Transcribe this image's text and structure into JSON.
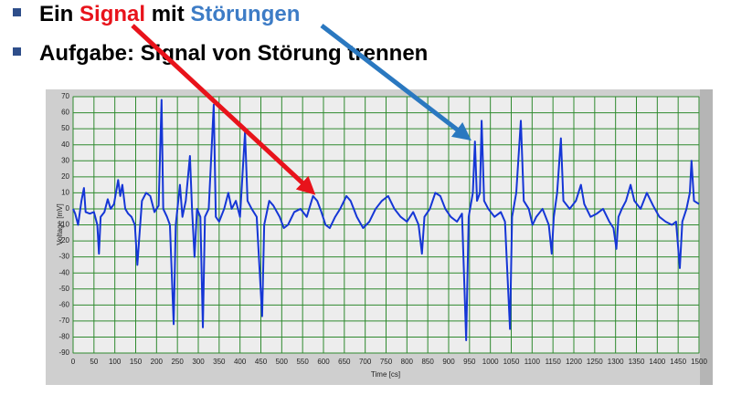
{
  "slide": {
    "bullet1": [
      "Ein ",
      "Signal",
      " mit ",
      "Störungen"
    ],
    "bullet2": "Aufgabe: Signal von Störung trennen"
  },
  "chart_data": {
    "type": "line",
    "xlabel": "Time [cs]",
    "ylabel": "Voltage [mV]",
    "color": "#1536d6",
    "grid": true,
    "xlim": [
      0,
      1500
    ],
    "ylim": [
      -90,
      70
    ],
    "xticks": [
      0,
      50,
      100,
      150,
      200,
      250,
      300,
      350,
      400,
      450,
      500,
      550,
      600,
      650,
      700,
      750,
      800,
      850,
      900,
      950,
      1000,
      1050,
      1100,
      1150,
      1200,
      1250,
      1300,
      1350,
      1400,
      1450,
      1500
    ],
    "yticks": [
      -90,
      -80,
      -70,
      -60,
      -50,
      -40,
      -30,
      -20,
      -10,
      0,
      10,
      20,
      30,
      40,
      50,
      60,
      70
    ],
    "x": [
      0,
      5,
      12,
      20,
      26,
      30,
      40,
      50,
      58,
      62,
      66,
      75,
      83,
      90,
      98,
      108,
      113,
      118,
      125,
      132,
      140,
      148,
      154,
      158,
      165,
      175,
      185,
      195,
      205,
      212,
      216,
      225,
      232,
      241,
      246,
      256,
      262,
      270,
      280,
      285,
      291,
      297,
      305,
      311,
      316,
      325,
      337,
      342,
      350,
      362,
      372,
      380,
      390,
      400,
      412,
      418,
      428,
      440,
      453,
      458,
      470,
      480,
      495,
      505,
      515,
      530,
      545,
      560,
      575,
      585,
      595,
      605,
      615,
      628,
      640,
      655,
      665,
      680,
      695,
      710,
      725,
      740,
      755,
      770,
      785,
      800,
      815,
      828,
      836,
      842,
      855,
      868,
      880,
      892,
      905,
      920,
      932,
      942,
      948,
      958,
      963,
      968,
      975,
      979,
      985,
      995,
      1010,
      1025,
      1035,
      1047,
      1052,
      1062,
      1073,
      1080,
      1092,
      1101,
      1110,
      1125,
      1140,
      1147,
      1152,
      1160,
      1169,
      1175,
      1190,
      1205,
      1217,
      1225,
      1240,
      1255,
      1270,
      1285,
      1295,
      1302,
      1307,
      1315,
      1325,
      1336,
      1345,
      1360,
      1375,
      1390,
      1405,
      1420,
      1435,
      1445,
      1454,
      1460,
      1470,
      1478,
      1482,
      1488,
      1500
    ],
    "values": [
      0,
      -3,
      -10,
      5,
      13,
      -2,
      -3,
      -2,
      -10,
      -28,
      -5,
      -2,
      6,
      0,
      3,
      18,
      8,
      15,
      0,
      -3,
      -5,
      -10,
      -35,
      -20,
      5,
      10,
      8,
      -2,
      2,
      68,
      0,
      -5,
      -10,
      -72,
      -10,
      15,
      -5,
      5,
      33,
      0,
      -30,
      0,
      -5,
      -74,
      -5,
      0,
      65,
      -5,
      -8,
      0,
      10,
      0,
      5,
      -5,
      48,
      5,
      0,
      -5,
      -67,
      -10,
      5,
      2,
      -5,
      -12,
      -10,
      -2,
      0,
      -5,
      8,
      5,
      -2,
      -10,
      -12,
      -5,
      0,
      8,
      5,
      -5,
      -12,
      -8,
      0,
      5,
      8,
      0,
      -5,
      -8,
      -2,
      -10,
      -28,
      -5,
      0,
      10,
      8,
      0,
      -5,
      -8,
      -3,
      -82,
      -5,
      10,
      42,
      5,
      10,
      55,
      5,
      0,
      -5,
      -2,
      -8,
      -75,
      -5,
      10,
      55,
      5,
      0,
      -10,
      -5,
      0,
      -10,
      -28,
      -5,
      10,
      44,
      5,
      0,
      5,
      15,
      3,
      -5,
      -3,
      0,
      -8,
      -12,
      -25,
      -5,
      0,
      5,
      15,
      5,
      0,
      10,
      2,
      -5,
      -8,
      -10,
      -8,
      -37,
      -8,
      0,
      10,
      30,
      5,
      3
    ]
  }
}
